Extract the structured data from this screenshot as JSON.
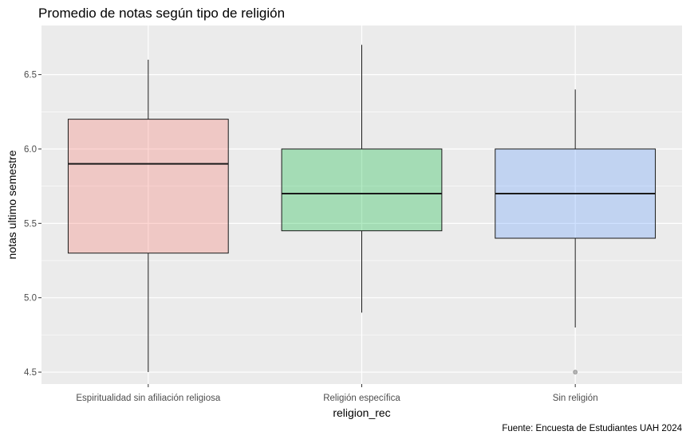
{
  "chart_data": {
    "type": "boxplot",
    "title": "Promedio de notas según tipo de religión",
    "xlabel": "religion_rec",
    "ylabel": "notas ultimo semestre",
    "caption": "Fuente: Encuesta de Estudiantes UAH 2024",
    "ylim": [
      4.42,
      6.83
    ],
    "yticks": [
      4.5,
      5.0,
      5.5,
      6.0,
      6.5
    ],
    "ytick_labels": [
      "4.5",
      "5.0",
      "5.5",
      "6.0",
      "6.5"
    ],
    "grid": true,
    "legend": "none",
    "categories": [
      "Espiritualidad sin afiliación religiosa",
      "Religión específica",
      "Sin religión"
    ],
    "boxes": [
      {
        "category": "Espiritualidad sin afiliación religiosa",
        "whisker_low": 4.5,
        "q1": 5.3,
        "median": 5.9,
        "q3": 6.2,
        "whisker_high": 6.6,
        "outliers": [],
        "color": "#F8766D"
      },
      {
        "category": "Religión específica",
        "whisker_low": 4.9,
        "q1": 5.45,
        "median": 5.7,
        "q3": 6.0,
        "whisker_high": 6.7,
        "outliers": [],
        "color": "#00BA38"
      },
      {
        "category": "Sin religión",
        "whisker_low": 4.8,
        "q1": 5.4,
        "median": 5.7,
        "q3": 6.0,
        "whisker_high": 6.4,
        "outliers": [
          4.5
        ],
        "color": "#619CFF"
      }
    ],
    "colors": {
      "panel_background": "#EBEBEB",
      "grid": "#FFFFFF"
    }
  }
}
